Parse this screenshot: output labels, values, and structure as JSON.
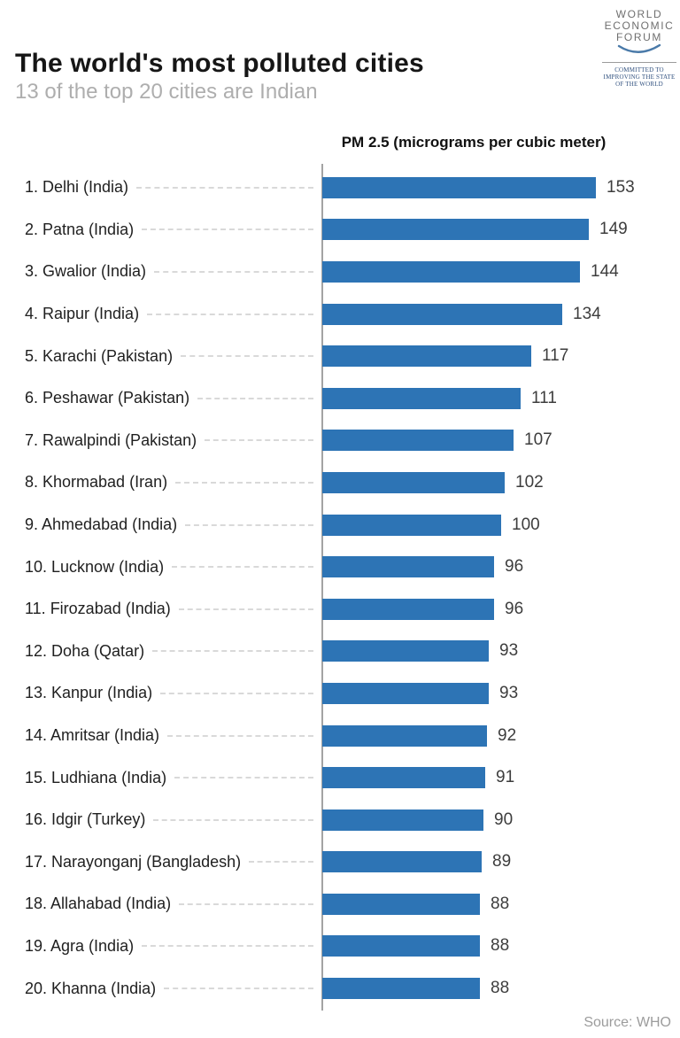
{
  "header": {
    "title": "The world's most polluted cities",
    "subtitle": "13 of the top 20 cities are Indian"
  },
  "logo": {
    "lines": [
      "WORLD",
      "ECONOMIC",
      "FORUM"
    ],
    "tagline_lines": [
      "COMMITTED TO",
      "IMPROVING THE STATE",
      "OF THE WORLD"
    ],
    "swoosh_color": "#4a7aa9",
    "text_color": "#6f6f6f",
    "tagline_color": "#31517f"
  },
  "chart_data": {
    "type": "bar",
    "orientation": "horizontal",
    "axis_title": "PM 2.5 (micrograms per cubic meter)",
    "categories": [
      "1. Delhi (India)",
      "2. Patna (India)",
      "3. Gwalior (India)",
      "4. Raipur (India)",
      "5. Karachi (Pakistan)",
      "6. Peshawar (Pakistan)",
      "7. Rawalpindi (Pakistan)",
      "8. Khormabad (Iran)",
      "9. Ahmedabad (India)",
      "10. Lucknow (India)",
      "11. Firozabad (India)",
      "12. Doha (Qatar)",
      "13. Kanpur (India)",
      "14. Amritsar (India)",
      "15. Ludhiana (India)",
      "16. Idgir (Turkey)",
      "17. Narayonganj (Bangladesh)",
      "18. Allahabad (India)",
      "19. Agra (India)",
      "20. Khanna (India)"
    ],
    "values": [
      153,
      149,
      144,
      134,
      117,
      111,
      107,
      102,
      100,
      96,
      96,
      93,
      93,
      92,
      91,
      90,
      89,
      88,
      88,
      88
    ],
    "xlim": [
      0,
      170
    ],
    "bar_color": "#2d74b5",
    "grid": false,
    "legend": false
  },
  "footer": {
    "source": "Source: WHO"
  }
}
